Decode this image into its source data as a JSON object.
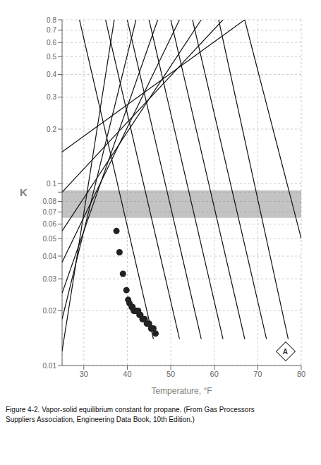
{
  "chart_data": {
    "type": "scatter",
    "xlabel": "Temperature, °F",
    "ylabel": "K",
    "caption": [
      "Figure 4-2. Vapor-solid equilibrium constant for propane. (From Gas Processors",
      "Suppliers Association, Engineering Data Book, 10th Edition.)"
    ],
    "annotations": [
      "A"
    ],
    "log": "y",
    "grid": true,
    "xlim": [
      25,
      80
    ],
    "ylim": [
      0.01,
      0.8
    ],
    "xticks": [
      30,
      40,
      50,
      60,
      70,
      80
    ],
    "yticks": [
      0.01,
      0.02,
      0.03,
      0.04,
      0.05,
      0.06,
      0.07,
      0.08,
      {
        "value": 0.09,
        "label": ""
      },
      0.1,
      0.2,
      0.3,
      0.4,
      0.5,
      0.6,
      0.7,
      0.8
    ],
    "band": {
      "from": 0.065,
      "to": 0.092,
      "color": "#888888"
    },
    "series": [
      {
        "type": "line",
        "color": "#111111",
        "x": [
          25,
          37
        ],
        "values": [
          0.012,
          0.8
        ]
      },
      {
        "type": "line",
        "color": "#111111",
        "x": [
          25,
          42
        ],
        "values": [
          0.018,
          0.8
        ]
      },
      {
        "type": "line",
        "color": "#111111",
        "x": [
          25,
          47
        ],
        "values": [
          0.025,
          0.8
        ]
      },
      {
        "type": "line",
        "color": "#111111",
        "x": [
          25,
          52
        ],
        "values": [
          0.037,
          0.8
        ]
      },
      {
        "type": "line",
        "color": "#111111",
        "x": [
          25,
          57
        ],
        "values": [
          0.055,
          0.8
        ]
      },
      {
        "type": "line",
        "color": "#111111",
        "x": [
          25,
          62
        ],
        "values": [
          0.09,
          0.8
        ]
      },
      {
        "type": "line",
        "color": "#111111",
        "x": [
          25,
          67
        ],
        "values": [
          0.15,
          0.8
        ]
      },
      {
        "type": "line",
        "color": "#111111",
        "x": [
          29,
          46
        ],
        "values": [
          0.8,
          0.014
        ]
      },
      {
        "type": "line",
        "color": "#111111",
        "x": [
          35,
          52
        ],
        "values": [
          0.8,
          0.014
        ]
      },
      {
        "type": "line",
        "color": "#111111",
        "x": [
          40,
          57
        ],
        "values": [
          0.8,
          0.014
        ]
      },
      {
        "type": "line",
        "color": "#111111",
        "x": [
          45,
          62
        ],
        "values": [
          0.8,
          0.014
        ]
      },
      {
        "type": "line",
        "color": "#111111",
        "x": [
          50,
          67
        ],
        "values": [
          0.8,
          0.014
        ]
      },
      {
        "type": "line",
        "color": "#111111",
        "x": [
          55,
          72
        ],
        "values": [
          0.8,
          0.014
        ]
      },
      {
        "type": "line",
        "color": "#111111",
        "x": [
          61,
          77
        ],
        "values": [
          0.8,
          0.014
        ]
      },
      {
        "type": "line",
        "color": "#111111",
        "x": [
          67,
          80
        ],
        "values": [
          0.8,
          0.05
        ]
      },
      {
        "type": "scatter",
        "color": "#222222",
        "x": [
          37.5,
          38.2,
          39.0,
          39.8,
          40.2,
          41.0,
          41.5,
          42.0,
          40.5,
          41.2,
          42.0,
          42.8,
          43.5,
          42.5,
          43.0,
          43.8,
          44.5,
          45.0,
          45.5,
          44.0,
          44.8,
          45.5,
          46.0,
          46.5
        ],
        "values": [
          0.055,
          0.042,
          0.032,
          0.026,
          0.023,
          0.021,
          0.02,
          0.02,
          0.022,
          0.021,
          0.02,
          0.019,
          0.018,
          0.02,
          0.019,
          0.018,
          0.017,
          0.017,
          0.016,
          0.018,
          0.017,
          0.016,
          0.016,
          0.015
        ]
      }
    ]
  }
}
